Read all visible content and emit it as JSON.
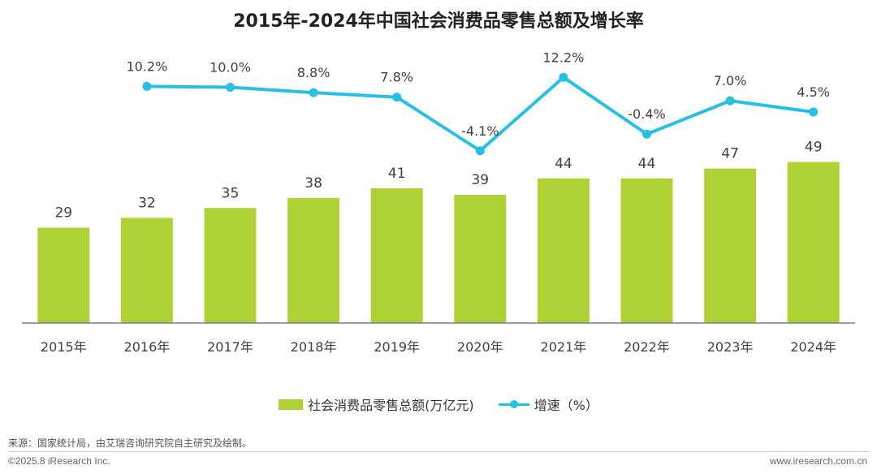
{
  "chart_data": {
    "type": "bar",
    "title": "2015年-2024年中国社会消费品零售总额及增长率",
    "categories": [
      "2015年",
      "2016年",
      "2017年",
      "2018年",
      "2019年",
      "2020年",
      "2021年",
      "2022年",
      "2023年",
      "2024年"
    ],
    "series": [
      {
        "name": "社会消费品零售总额(万亿元)",
        "type": "bar",
        "color": "#aed136",
        "values": [
          29,
          32,
          35,
          38,
          41,
          39,
          44,
          44,
          47,
          49
        ],
        "labels": [
          "29",
          "32",
          "35",
          "38",
          "41",
          "39",
          "44",
          "44",
          "47",
          "49"
        ]
      },
      {
        "name": "增速（%）",
        "type": "line",
        "color": "#27c0e4",
        "values": [
          null,
          10.2,
          10.0,
          8.8,
          7.8,
          -4.1,
          12.2,
          -0.4,
          7.0,
          4.5
        ],
        "labels": [
          "",
          "10.2%",
          "10.0%",
          "8.8%",
          "7.8%",
          "-4.1%",
          "12.2%",
          "-0.4%",
          "7.0%",
          "4.5%"
        ]
      }
    ],
    "legend_position": "bottom",
    "grid": false
  },
  "footer": {
    "source": "来源：国家统计局，由艾瑞咨询研究院自主研究及绘制。",
    "copyright": "©2025.8 iResearch Inc.",
    "website": "www.iresearch.com.cn"
  }
}
